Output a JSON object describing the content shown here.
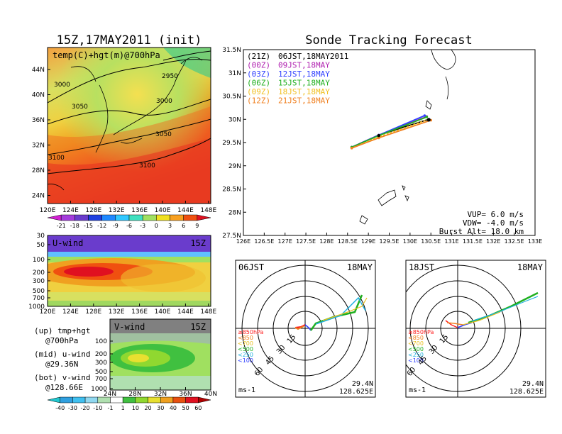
{
  "left": {
    "title": "15Z,17MAY2011 (init)",
    "map_label": "temp(C)+hgt(m)@700hPa",
    "map_lat_ticks": [
      "44N",
      "40N",
      "36N",
      "32N",
      "28N",
      "24N"
    ],
    "map_lon_ticks": [
      "120E",
      "124E",
      "128E",
      "132E",
      "136E",
      "140E",
      "144E",
      "148E"
    ],
    "contour_labels": [
      "3000",
      "3050",
      "2950",
      "3000",
      "3050",
      "3100",
      "3100"
    ],
    "temp_colorbar": {
      "labels": [
        "-21",
        "-18",
        "-15",
        "-12",
        "-9",
        "-6",
        "-3",
        "0",
        "3",
        "6",
        "9"
      ],
      "colors": [
        "#d41fd4",
        "#a43cdc",
        "#6a3ccc",
        "#2040e0",
        "#1e88ff",
        "#30c8ff",
        "#40e0c0",
        "#a0e060",
        "#f0e020",
        "#f8a020",
        "#f05010",
        "#e01020"
      ]
    },
    "uwind": {
      "label": "U-wind",
      "time": "15Z",
      "y_ticks": [
        "30",
        "50",
        "100",
        "200",
        "300",
        "500",
        "700",
        "1000"
      ],
      "x_ticks": [
        "120E",
        "124E",
        "128E",
        "132E",
        "136E",
        "140E",
        "144E",
        "148E"
      ]
    },
    "vwind": {
      "label": "V-wind",
      "time": "15Z",
      "y_ticks": [
        "100",
        "200",
        "300",
        "500",
        "700",
        "1000"
      ],
      "x_ticks": [
        "24N",
        "28N",
        "32N",
        "36N",
        "40N"
      ]
    },
    "notes": [
      {
        "line1": "(up) tmp+hgt",
        "line2": "@700hPa"
      },
      {
        "line1": "(mid) u-wind",
        "line2": "@29.36N"
      },
      {
        "line1": "(bot) v-wind",
        "line2": "@128.66E"
      }
    ],
    "wind_colorbar": {
      "labels": [
        "-40",
        "-30",
        "-20",
        "-10",
        "-1",
        "1",
        "10",
        "20",
        "30",
        "40",
        "50",
        "60"
      ],
      "colors": [
        "#20c8d0",
        "#30a0e0",
        "#40c0f0",
        "#90d8f0",
        "#b0e0b0",
        "#ffffff",
        "#40c040",
        "#90d830",
        "#e8e030",
        "#f0a020",
        "#e85010",
        "#e01020",
        "#b00000"
      ]
    }
  },
  "track": {
    "title": "Sonde Tracking Forecast",
    "legend": [
      {
        "code": "(21Z)",
        "text": "06JST,18MAY2011",
        "color": "#000000"
      },
      {
        "code": "(00Z)",
        "text": "09JST,18MAY",
        "color": "#b020b0"
      },
      {
        "code": "(03Z)",
        "text": "12JST,18MAY",
        "color": "#3040ff"
      },
      {
        "code": "(06Z)",
        "text": "15JST,18MAY",
        "color": "#20b020"
      },
      {
        "code": "(09Z)",
        "text": "18JST,18MAY",
        "color": "#f0c020"
      },
      {
        "code": "(12Z)",
        "text": "21JST,18MAY",
        "color": "#f08020"
      }
    ],
    "lat_ticks": [
      "31.5N",
      "31N",
      "30.5N",
      "30N",
      "29.5N",
      "29N",
      "28.5N",
      "28N",
      "27.5N"
    ],
    "lon_ticks": [
      "126E",
      "126.5E",
      "127E",
      "127.5E",
      "128E",
      "128.5E",
      "129E",
      "129.5E",
      "130E",
      "130.5E",
      "131E",
      "131.5E",
      "132E",
      "132.5E",
      "133E"
    ],
    "params": {
      "vup": "VUP=  6.0  m/s",
      "vdw": "VDW= -4.0  m/s",
      "burst": "Burst Alt= 18.0  km"
    }
  },
  "chart_data": [
    {
      "type": "line",
      "title": "Sonde Tracking Forecast",
      "xlim": [
        126,
        133
      ],
      "ylim": [
        27.5,
        31.5
      ],
      "series": [
        {
          "name": "(21Z) 06JST,18MAY2011",
          "x": [
            130.45,
            129.25,
            128.6
          ],
          "y": [
            30.0,
            29.66,
            29.4
          ]
        },
        {
          "name": "(00Z) 09JST,18MAY",
          "x": [
            130.4,
            129.25,
            128.6
          ],
          "y": [
            30.06,
            29.66,
            29.4
          ]
        },
        {
          "name": "(03Z) 12JST,18MAY",
          "x": [
            130.35,
            129.25,
            128.6
          ],
          "y": [
            30.08,
            29.66,
            29.4
          ]
        },
        {
          "name": "(06Z) 15JST,18MAY",
          "x": [
            130.4,
            129.25,
            128.6
          ],
          "y": [
            30.05,
            29.65,
            29.4
          ]
        },
        {
          "name": "(09Z) 18JST,18MAY",
          "x": [
            130.45,
            129.25,
            128.6
          ],
          "y": [
            30.0,
            29.62,
            29.38
          ]
        },
        {
          "name": "(12Z) 21JST,18MAY",
          "x": [
            130.5,
            129.25,
            128.6
          ],
          "y": [
            29.98,
            29.6,
            29.38
          ]
        }
      ]
    },
    {
      "type": "polar",
      "title": "06JST",
      "date": "18MAY",
      "unit": "ms-1",
      "rings": [
        "15",
        "30",
        "45",
        "60"
      ],
      "levels": [
        "≥850hPa",
        "<850",
        "<700",
        "<500",
        "<250",
        "<100"
      ],
      "level_colors": [
        "#ff2020",
        "#f08020",
        "#e8c020",
        "#20b020",
        "#20b0e0",
        "#3040ff"
      ],
      "lat": "29.4N",
      "lon": "128.625E"
    },
    {
      "type": "polar",
      "title": "18JST",
      "date": "18MAY",
      "unit": "ms-1",
      "rings": [
        "15",
        "30",
        "45",
        "60"
      ],
      "levels": [
        "≥850hPa",
        "<850",
        "<700",
        "<500",
        "<250",
        "<100"
      ],
      "level_colors": [
        "#ff2020",
        "#f08020",
        "#e8c020",
        "#20b020",
        "#20b0e0",
        "#3040ff"
      ],
      "lat": "29.4N",
      "lon": "128.625E"
    }
  ]
}
